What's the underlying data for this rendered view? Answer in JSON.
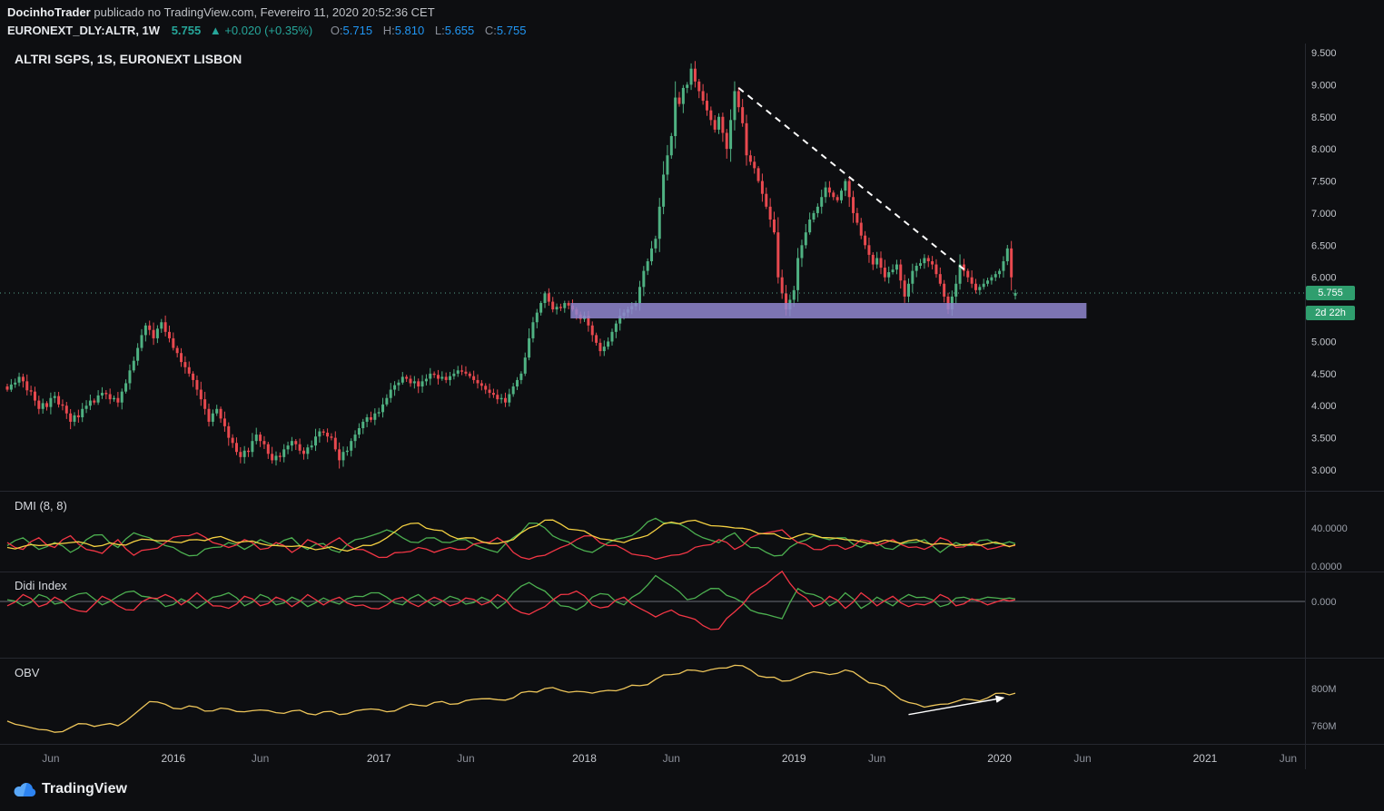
{
  "header": {
    "author": "DocinhoTrader",
    "published": " publicado no TradingView.com, Fevereiro 11, 2020 20:52:36 CET",
    "symbol": "EURONEXT_DLY:ALTR, 1W",
    "price": "5.755",
    "change": "▲ +0.020 (+0.35%)",
    "ohlc": [
      {
        "label": "O:",
        "value": "5.715"
      },
      {
        "label": "H:",
        "value": "5.810"
      },
      {
        "label": "L:",
        "value": "5.655"
      },
      {
        "label": "C:",
        "value": "5.755"
      }
    ]
  },
  "legend": {
    "main": "ALTRI SGPS, 1S, EURONEXT LISBON",
    "dmi": "DMI (8, 8)",
    "didi": "Didi Index",
    "obv": "OBV"
  },
  "badges": {
    "last_price": "5.755",
    "bar_countdown": "2d 22h"
  },
  "footer": {
    "brand": "TradingView"
  },
  "colors": {
    "up": "#4fb182",
    "down": "#e8494f",
    "band": "#9186cf",
    "trendline": "#ffffff",
    "price_line": "#56a08a",
    "dmi_plus": "#4caf50",
    "dmi_minus": "#f23645",
    "dmi_adx": "#f5d142",
    "didi_green": "#4caf50",
    "didi_red": "#f23645",
    "obv": "#edc55a",
    "badge_bg": "#2f9e6e",
    "value_blue": "#2196f3",
    "value_teal": "#26a69a"
  },
  "chart_data": {
    "type": "candlestick+indicators",
    "symbol": "ALTRI SGPS",
    "exchange": "EURONEXT LISBON",
    "interval": "1W",
    "price_panel": {
      "type": "candlestick",
      "ylim": [
        2.9,
        9.6
      ],
      "weekly_closes": [
        4.25,
        4.33,
        4.36,
        4.45,
        4.38,
        4.24,
        4.22,
        4.08,
        3.95,
        4.04,
        3.98,
        4.12,
        4.15,
        4.02,
        4.0,
        3.88,
        3.75,
        3.85,
        3.82,
        3.95,
        4.0,
        4.08,
        4.05,
        4.16,
        4.2,
        4.18,
        4.1,
        4.12,
        4.05,
        4.22,
        4.35,
        4.55,
        4.7,
        4.9,
        5.1,
        5.25,
        5.18,
        5.05,
        5.2,
        5.3,
        5.15,
        5.05,
        4.9,
        4.82,
        4.68,
        4.6,
        4.5,
        4.4,
        4.25,
        4.1,
        3.95,
        3.75,
        3.88,
        3.95,
        3.8,
        3.68,
        3.5,
        3.42,
        3.28,
        3.2,
        3.3,
        3.28,
        3.45,
        3.55,
        3.45,
        3.4,
        3.25,
        3.15,
        3.22,
        3.2,
        3.32,
        3.38,
        3.45,
        3.4,
        3.3,
        3.25,
        3.35,
        3.38,
        3.52,
        3.6,
        3.58,
        3.52,
        3.5,
        3.32,
        3.15,
        3.28,
        3.3,
        3.45,
        3.55,
        3.65,
        3.75,
        3.82,
        3.78,
        3.88,
        3.9,
        4.02,
        4.12,
        4.25,
        4.32,
        4.36,
        4.45,
        4.42,
        4.35,
        4.38,
        4.3,
        4.38,
        4.42,
        4.5,
        4.48,
        4.42,
        4.45,
        4.4,
        4.46,
        4.5,
        4.55,
        4.53,
        4.5,
        4.46,
        4.4,
        4.35,
        4.31,
        4.25,
        4.2,
        4.17,
        4.1,
        4.12,
        4.05,
        4.18,
        4.3,
        4.4,
        4.5,
        4.75,
        5.05,
        5.3,
        5.45,
        5.6,
        5.75,
        5.62,
        5.5,
        5.54,
        5.52,
        5.6,
        5.56,
        5.5,
        5.42,
        5.35,
        5.4,
        5.25,
        5.1,
        4.98,
        4.85,
        4.92,
        5.0,
        5.15,
        5.28,
        5.4,
        5.45,
        5.5,
        5.55,
        5.6,
        5.85,
        6.1,
        6.25,
        6.45,
        6.6,
        7.1,
        7.6,
        7.9,
        8.2,
        8.8,
        8.7,
        8.95,
        9.0,
        9.25,
        9.05,
        8.9,
        8.75,
        8.6,
        8.45,
        8.3,
        8.5,
        8.25,
        8.0,
        8.45,
        8.9,
        8.65,
        8.4,
        7.9,
        7.8,
        7.7,
        7.5,
        7.3,
        7.1,
        6.9,
        6.7,
        6.0,
        5.75,
        5.5,
        5.65,
        5.8,
        6.3,
        6.5,
        6.7,
        6.9,
        7.0,
        7.1,
        7.25,
        7.4,
        7.32,
        7.25,
        7.2,
        7.35,
        7.5,
        7.25,
        7.0,
        6.85,
        6.65,
        6.5,
        6.35,
        6.2,
        6.3,
        6.15,
        6.0,
        6.08,
        6.12,
        6.2,
        5.95,
        5.7,
        5.9,
        6.1,
        6.18,
        6.22,
        6.3,
        6.25,
        6.2,
        6.05,
        5.9,
        5.7,
        5.5,
        5.7,
        5.9,
        6.2,
        6.1,
        6.0,
        5.9,
        5.8,
        5.85,
        5.9,
        5.95,
        6.0,
        6.05,
        6.1,
        6.25,
        6.45,
        6.0,
        5.755
      ],
      "last_candle": {
        "open": 5.715,
        "high": 5.81,
        "low": 5.655,
        "close": 5.755
      },
      "last_price": 5.755,
      "support_zone": {
        "week_start": 142.5,
        "week_end": 273,
        "price_top": 5.6,
        "price_bottom": 5.36
      },
      "trendline": {
        "week1": 185,
        "price1": 8.95,
        "week2": 242.5,
        "price2": 6.1,
        "style": "dashed"
      },
      "y_ticks": [
        {
          "text": "9.500",
          "value": 9.5
        },
        {
          "text": "9.000",
          "value": 9.0
        },
        {
          "text": "8.500",
          "value": 8.5
        },
        {
          "text": "8.000",
          "value": 8.0
        },
        {
          "text": "7.500",
          "value": 7.5
        },
        {
          "text": "7.000",
          "value": 7.0
        },
        {
          "text": "6.500",
          "value": 6.5
        },
        {
          "text": "6.000",
          "value": 6.0
        },
        {
          "text": "5.000",
          "value": 5.0
        },
        {
          "text": "4.500",
          "value": 4.5
        },
        {
          "text": "4.000",
          "value": 4.0
        },
        {
          "text": "3.500",
          "value": 3.5
        },
        {
          "text": "3.000",
          "value": 3.0
        }
      ]
    },
    "dmi_panel": {
      "type": "line",
      "label": "DMI (8, 8)",
      "step_weeks": 4,
      "series": [
        {
          "name": "+DI",
          "color": "dmi_plus",
          "values": [
            22,
            30,
            18,
            25,
            15,
            28,
            33,
            20,
            35,
            30,
            22,
            15,
            12,
            20,
            25,
            18,
            28,
            22,
            30,
            18,
            24,
            15,
            28,
            32,
            38,
            30,
            25,
            30,
            25,
            28,
            20,
            15,
            30,
            45,
            40,
            28,
            20,
            15,
            25,
            30,
            38,
            50,
            45,
            40,
            30,
            25,
            35,
            20,
            15,
            12,
            25,
            32,
            28,
            30,
            20,
            25,
            18,
            25,
            28,
            15,
            25,
            22,
            28,
            24
          ]
        },
        {
          "name": "-DI",
          "color": "dmi_minus",
          "values": [
            25,
            18,
            30,
            20,
            32,
            18,
            14,
            28,
            12,
            18,
            25,
            32,
            35,
            25,
            20,
            28,
            18,
            25,
            15,
            28,
            20,
            30,
            18,
            14,
            10,
            15,
            20,
            15,
            20,
            18,
            25,
            30,
            15,
            8,
            12,
            20,
            28,
            32,
            22,
            18,
            12,
            8,
            12,
            15,
            22,
            28,
            18,
            30,
            35,
            38,
            25,
            18,
            22,
            18,
            28,
            22,
            28,
            20,
            18,
            30,
            20,
            25,
            18,
            22
          ]
        },
        {
          "name": "ADX",
          "color": "dmi_adx",
          "values": [
            20,
            21,
            22,
            24,
            25,
            24,
            22,
            23,
            26,
            28,
            27,
            25,
            28,
            30,
            28,
            26,
            24,
            22,
            21,
            20,
            19,
            18,
            19,
            22,
            30,
            42,
            45,
            38,
            32,
            30,
            26,
            24,
            28,
            40,
            48,
            44,
            38,
            32,
            28,
            25,
            30,
            38,
            46,
            47,
            45,
            42,
            40,
            38,
            34,
            30,
            32,
            33,
            30,
            28,
            26,
            25,
            26,
            27,
            25,
            24,
            22,
            23,
            24,
            23
          ]
        }
      ],
      "y_ticks": [
        {
          "text": "40.0000",
          "value": 40
        },
        {
          "text": "0.0000",
          "value": 0
        }
      ]
    },
    "didi_panel": {
      "type": "line",
      "label": "Didi Index",
      "step_weeks": 4,
      "zero_line": true,
      "series": [
        {
          "name": "didi-fast",
          "color": "didi_green",
          "values": [
            0.02,
            -0.05,
            0.08,
            -0.03,
            0.05,
            0.1,
            -0.04,
            0.06,
            0.12,
            0.05,
            -0.06,
            0.03,
            -0.08,
            0.05,
            0.1,
            -0.05,
            0.08,
            -0.04,
            0.05,
            -0.06,
            0.04,
            -0.03,
            0.06,
            0.1,
            0.05,
            -0.04,
            0.08,
            -0.05,
            0.06,
            -0.03,
            0.05,
            -0.08,
            0.1,
            0.22,
            0.12,
            -0.05,
            -0.1,
            0.05,
            0.08,
            -0.04,
            0.1,
            0.3,
            0.18,
            0.02,
            0.1,
            0.15,
            0.04,
            -0.1,
            -0.15,
            -0.2,
            0.15,
            0.08,
            -0.05,
            0.1,
            -0.08,
            0.05,
            -0.05,
            0.08,
            0.05,
            -0.06,
            0.04,
            0.02,
            0.05,
            0.03
          ]
        },
        {
          "name": "didi-slow",
          "color": "didi_red",
          "values": [
            -0.05,
            0.08,
            -0.06,
            0.05,
            -0.08,
            -0.12,
            0.06,
            -0.05,
            -0.1,
            0.04,
            0.08,
            -0.04,
            0.1,
            -0.05,
            -0.08,
            0.06,
            -0.05,
            0.05,
            -0.06,
            0.08,
            -0.04,
            0.05,
            -0.05,
            -0.08,
            -0.04,
            0.05,
            -0.06,
            0.05,
            -0.05,
            0.04,
            -0.04,
            0.08,
            -0.08,
            -0.15,
            -0.06,
            0.08,
            0.12,
            -0.04,
            -0.06,
            0.05,
            -0.08,
            -0.18,
            -0.1,
            -0.18,
            -0.28,
            -0.32,
            -0.12,
            0.08,
            0.2,
            0.35,
            0.1,
            -0.06,
            0.06,
            -0.08,
            0.1,
            -0.05,
            0.06,
            -0.06,
            -0.04,
            0.08,
            -0.05,
            0.03,
            -0.04,
            0.02
          ]
        }
      ],
      "y_ticks": [
        {
          "text": "0.000",
          "value": 0
        }
      ]
    },
    "obv_panel": {
      "type": "line",
      "label": "OBV",
      "unit": "millions",
      "step_weeks": 4,
      "values": [
        765,
        760,
        756,
        753,
        758,
        762,
        761,
        760,
        772,
        786,
        783,
        778,
        780,
        776,
        778,
        775,
        777,
        774,
        776,
        773,
        775,
        772,
        776,
        778,
        775,
        780,
        782,
        785,
        783,
        787,
        789,
        788,
        790,
        797,
        800,
        798,
        797,
        795,
        798,
        800,
        803,
        810,
        815,
        820,
        818,
        822,
        825,
        820,
        812,
        808,
        812,
        818,
        815,
        820,
        812,
        805,
        795,
        785,
        780,
        783,
        786,
        788,
        790,
        795
      ],
      "trend_arrow": {
        "from_week": 228,
        "from_value": 772,
        "to_week": 252,
        "to_value": 790
      },
      "y_ticks": [
        {
          "text": "800M",
          "value": 800
        },
        {
          "text": "760M",
          "value": 760
        }
      ]
    },
    "time_ticks": [
      {
        "text": "Jun",
        "week": 11,
        "major": false
      },
      {
        "text": "2016",
        "week": 42,
        "major": true
      },
      {
        "text": "Jun",
        "week": 64,
        "major": false
      },
      {
        "text": "2017",
        "week": 94,
        "major": true
      },
      {
        "text": "Jun",
        "week": 116,
        "major": false
      },
      {
        "text": "2018",
        "week": 146,
        "major": true
      },
      {
        "text": "Jun",
        "week": 168,
        "major": false
      },
      {
        "text": "2019",
        "week": 199,
        "major": true
      },
      {
        "text": "Jun",
        "week": 220,
        "major": false
      },
      {
        "text": "2020",
        "week": 251,
        "major": true
      },
      {
        "text": "Jun",
        "week": 272,
        "major": false
      },
      {
        "text": "2021",
        "week": 303,
        "major": true
      },
      {
        "text": "Jun",
        "week": 324,
        "major": false
      }
    ]
  }
}
